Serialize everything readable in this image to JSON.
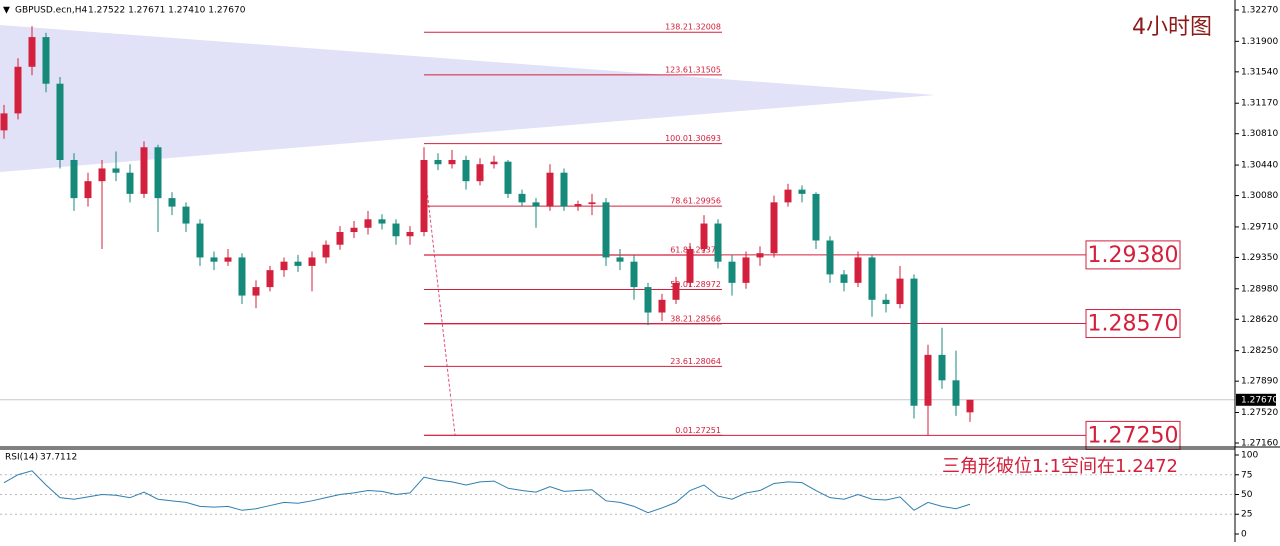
{
  "chart_data": {
    "type": "candlestick",
    "header": {
      "symbol": "GBPUSD.ecn,H4",
      "quote": "1.27522 1.27671 1.27410 1.27670"
    },
    "annotations": {
      "timeframe": "4小时图",
      "note": "三角形破位1:1空间在1.2472"
    },
    "up_color": "#d3203c",
    "down_color": "#15897a",
    "ylim": [
      1.27113,
      1.32388
    ],
    "yticks": [
      {
        "value": 1.3227,
        "label": "1.32270"
      },
      {
        "value": 1.319,
        "label": "1.31900"
      },
      {
        "value": 1.3154,
        "label": "1.31540"
      },
      {
        "value": 1.3117,
        "label": "1.31170"
      },
      {
        "value": 1.3081,
        "label": "1.30810"
      },
      {
        "value": 1.3044,
        "label": "1.30440"
      },
      {
        "value": 1.3008,
        "label": "1.30080"
      },
      {
        "value": 1.2971,
        "label": "1.29710"
      },
      {
        "value": 1.2935,
        "label": "1.29350"
      },
      {
        "value": 1.2898,
        "label": "1.28980"
      },
      {
        "value": 1.2862,
        "label": "1.28620"
      },
      {
        "value": 1.2825,
        "label": "1.28250"
      },
      {
        "value": 1.2789,
        "label": "1.27890"
      },
      {
        "value": 1.2752,
        "label": "1.27520"
      },
      {
        "value": 1.2716,
        "label": "1.27160"
      }
    ],
    "current_price": {
      "value": 1.2767,
      "label": "1.27670"
    },
    "fib_levels": [
      {
        "level": 138.2,
        "price": 1.32008
      },
      {
        "level": 123.6,
        "price": 1.31505
      },
      {
        "level": {
          "value": 100,
          "label": "100.0"
        },
        "price": 1.30693
      },
      {
        "level": 78.6,
        "price": 1.29956
      },
      {
        "level": 61.8,
        "price": 1.29378
      },
      {
        "level": {
          "value": 50,
          "label": "50.0"
        },
        "price": 1.28972
      },
      {
        "level": 38.2,
        "price": 1.28566
      },
      {
        "level": 23.6,
        "price": 1.28064
      },
      {
        "level": {
          "value": 0,
          "label": "0.0"
        },
        "price": 1.27251
      }
    ],
    "key_levels": [
      {
        "value": 1.2938,
        "label": "1.29380"
      },
      {
        "value": 1.2857,
        "label": "1.28570"
      },
      {
        "value": 1.2725,
        "label": "1.27250"
      }
    ],
    "candles": [
      [
        1.3085,
        1.3115,
        1.3075,
        1.3105
      ],
      [
        1.3105,
        1.317,
        1.3098,
        1.316
      ],
      [
        1.316,
        1.3208,
        1.315,
        1.3195
      ],
      [
        1.3195,
        1.32,
        1.313,
        1.314
      ],
      [
        1.314,
        1.3148,
        1.304,
        1.305
      ],
      [
        1.305,
        1.3058,
        1.299,
        1.3005
      ],
      [
        1.3005,
        1.3035,
        1.2995,
        1.3025
      ],
      [
        1.3025,
        1.305,
        1.2945,
        1.304
      ],
      [
        1.304,
        1.306,
        1.3025,
        1.3035
      ],
      [
        1.3035,
        1.3045,
        1.3,
        1.301
      ],
      [
        1.301,
        1.3072,
        1.3005,
        1.3065
      ],
      [
        1.3065,
        1.3068,
        1.2965,
        1.3005
      ],
      [
        1.3005,
        1.3012,
        1.2985,
        1.2995
      ],
      [
        1.2995,
        1.3,
        1.2965,
        1.2975
      ],
      [
        1.2975,
        1.298,
        1.2925,
        1.2935
      ],
      [
        1.2935,
        1.2942,
        1.292,
        1.293
      ],
      [
        1.293,
        1.2945,
        1.2925,
        1.2935
      ],
      [
        1.2935,
        1.294,
        1.288,
        1.289
      ],
      [
        1.289,
        1.2908,
        1.2875,
        1.29
      ],
      [
        1.29,
        1.2925,
        1.2895,
        1.292
      ],
      [
        1.292,
        1.2935,
        1.2912,
        1.293
      ],
      [
        1.293,
        1.2938,
        1.2918,
        1.2925
      ],
      [
        1.2925,
        1.2942,
        1.2895,
        1.2935
      ],
      [
        1.2935,
        1.2955,
        1.2928,
        1.295
      ],
      [
        1.295,
        1.2972,
        1.2944,
        1.2965
      ],
      [
        1.2965,
        1.2978,
        1.2958,
        1.297
      ],
      [
        1.297,
        1.299,
        1.2962,
        1.298
      ],
      [
        1.298,
        1.2986,
        1.2968,
        1.2975
      ],
      [
        1.2975,
        1.298,
        1.295,
        1.296
      ],
      [
        1.296,
        1.2972,
        1.295,
        1.2965
      ],
      [
        1.2965,
        1.3065,
        1.296,
        1.305
      ],
      [
        1.305,
        1.3058,
        1.3038,
        1.3045
      ],
      [
        1.3045,
        1.3062,
        1.304,
        1.305
      ],
      [
        1.305,
        1.3055,
        1.3015,
        1.3025
      ],
      [
        1.3025,
        1.3052,
        1.302,
        1.3045
      ],
      [
        1.3045,
        1.3055,
        1.304,
        1.3048
      ],
      [
        1.3048,
        1.305,
        1.3005,
        1.301
      ],
      [
        1.301,
        1.3015,
        1.2995,
        1.3
      ],
      [
        1.3,
        1.3005,
        1.297,
        1.2995
      ],
      [
        1.2995,
        1.3045,
        1.299,
        1.3035
      ],
      [
        1.3035,
        1.304,
        1.299,
        1.2995
      ],
      [
        1.2995,
        1.3002,
        1.299,
        1.2998
      ],
      [
        1.2998,
        1.301,
        1.2985,
        1.3
      ],
      [
        1.3,
        1.3005,
        1.2925,
        1.2935
      ],
      [
        1.2935,
        1.2945,
        1.292,
        1.293
      ],
      [
        1.293,
        1.2938,
        1.2885,
        1.29
      ],
      [
        1.29,
        1.2905,
        1.2855,
        1.287
      ],
      [
        1.287,
        1.2892,
        1.286,
        1.2885
      ],
      [
        1.2885,
        1.2912,
        1.288,
        1.2905
      ],
      [
        1.2905,
        1.2952,
        1.29,
        1.2945
      ],
      [
        1.2945,
        1.2985,
        1.294,
        1.2975
      ],
      [
        1.2975,
        1.298,
        1.2922,
        1.293
      ],
      [
        1.293,
        1.2938,
        1.289,
        1.2905
      ],
      [
        1.2905,
        1.2942,
        1.2898,
        1.2935
      ],
      [
        1.2935,
        1.2948,
        1.2925,
        1.294
      ],
      [
        1.294,
        1.3008,
        1.2935,
        1.3
      ],
      [
        1.3,
        1.3022,
        1.2995,
        1.3015
      ],
      [
        1.3015,
        1.302,
        1.3,
        1.301
      ],
      [
        1.301,
        1.3012,
        1.2945,
        1.2955
      ],
      [
        1.2955,
        1.296,
        1.2905,
        1.2915
      ],
      [
        1.2915,
        1.292,
        1.2895,
        1.2905
      ],
      [
        1.2905,
        1.2942,
        1.29,
        1.2935
      ],
      [
        1.2935,
        1.2938,
        1.2865,
        1.2885
      ],
      [
        1.2885,
        1.2892,
        1.287,
        1.288
      ],
      [
        1.288,
        1.2925,
        1.2875,
        1.291
      ],
      [
        1.291,
        1.2915,
        1.2745,
        1.276
      ],
      [
        1.276,
        1.2832,
        1.2725,
        1.282
      ],
      [
        1.282,
        1.2852,
        1.278,
        1.279
      ],
      [
        1.279,
        1.2825,
        1.2748,
        1.276
      ],
      [
        1.27522,
        1.27671,
        1.2741,
        1.2767
      ]
    ],
    "rsi": {
      "name": "RSI(14)",
      "last": 37.7112,
      "color": "#2f7fb0",
      "ylim": [
        -7.6,
        107.6
      ],
      "yticks": [
        100,
        75,
        50,
        25,
        0
      ],
      "values": [
        65,
        75,
        80,
        62,
        46,
        44,
        47,
        50,
        49,
        46,
        53,
        44,
        42,
        40,
        35,
        34,
        35,
        30,
        32,
        36,
        40,
        39,
        42,
        46,
        50,
        52,
        55,
        54,
        50,
        52,
        72,
        68,
        66,
        62,
        66,
        67,
        58,
        55,
        53,
        60,
        54,
        55,
        56,
        42,
        40,
        35,
        27,
        33,
        40,
        55,
        62,
        48,
        44,
        52,
        55,
        64,
        66,
        65,
        55,
        46,
        44,
        50,
        44,
        43,
        47,
        30,
        40,
        35,
        32,
        37.7
      ]
    }
  }
}
